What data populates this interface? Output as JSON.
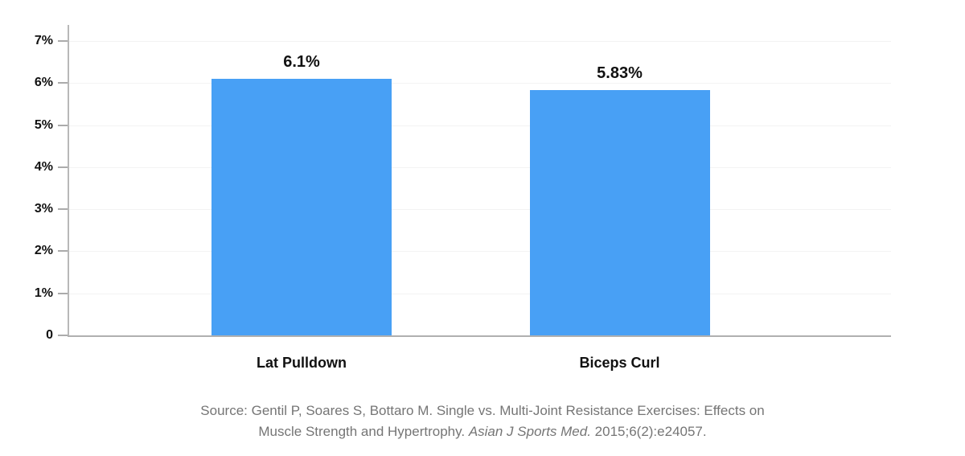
{
  "chart_data": {
    "type": "bar",
    "title": "",
    "categories": [
      "Lat Pulldown",
      "Biceps Curl"
    ],
    "values": [
      6.1,
      5.83
    ],
    "value_labels": [
      "6.1%",
      "5.83%"
    ],
    "xlabel": "",
    "ylabel": "",
    "ylim": [
      0,
      7
    ],
    "y_tick_values": [
      0,
      1,
      2,
      3,
      4,
      5,
      6,
      7
    ],
    "y_tick_labels": [
      "0",
      "1%",
      "2%",
      "3%",
      "4%",
      "5%",
      "6%",
      "7%"
    ],
    "grid": "horizontal",
    "legend": "none",
    "bar_color": "#48A0F5",
    "source": {
      "line1": "Source: Gentil P, Soares S, Bottaro M. Single vs. Multi-Joint Resistance Exercises: Effects on",
      "line2_pre": "Muscle Strength and Hypertrophy. ",
      "line2_italic": "Asian J Sports Med.",
      "line2_post": " 2015;6(2):e24057."
    }
  },
  "colors": {
    "axis": "#b0b0b0",
    "gridline": "#f3f3f3",
    "tick": "#ababab",
    "label_text": "#111111",
    "source_text": "#757575"
  }
}
